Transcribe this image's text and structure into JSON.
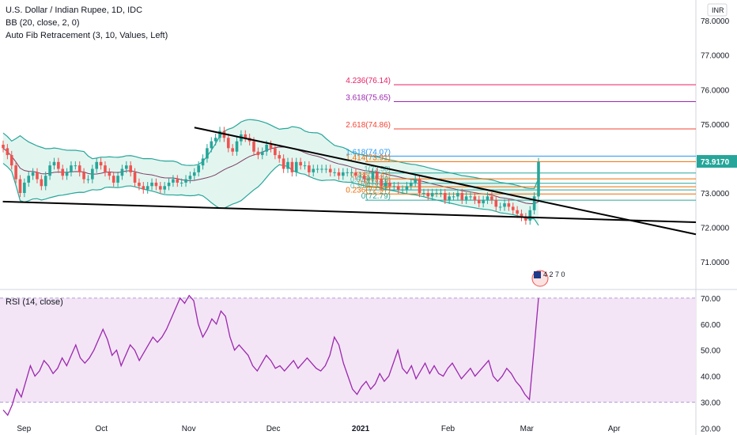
{
  "legend": {
    "symbol": "U.S. Dollar / Indian Rupee, 1D, IDC",
    "bb": "BB (20, close, 2, 0)",
    "fib": "Auto Fib Retracement (3, 10, Values, Left)",
    "rsi": "RSI (14, close)"
  },
  "currency": "INR",
  "last_price": "73.9170",
  "colors": {
    "up": "#26a69a",
    "down": "#ef5350",
    "bb_band": "#26a69a",
    "bb_fill": "#e3f5ef",
    "bb_basis": "#7b3f66",
    "rsi_line": "#9c27b0",
    "rsi_fill": "#f3e5f5",
    "trendline": "#000000",
    "fib_4236": "#e91e63",
    "fib_3618": "#9c27b0",
    "fib_2618": "#f44336",
    "fib_1618": "#2196f3",
    "price_label": "#26a69a"
  },
  "chart_data": [
    {
      "type": "candlestick",
      "title": "U.S. Dollar / Indian Rupee, 1D, IDC",
      "y_axis": {
        "ticks": [
          "78.0000",
          "77.0000",
          "76.0000",
          "75.0000",
          "73.0000",
          "72.0000",
          "71.0000"
        ],
        "range": [
          70.2,
          78.6
        ],
        "side": "right"
      },
      "x_axis": {
        "ticks": [
          "Sep",
          "Oct",
          "Nov",
          "Dec",
          "2021",
          "Feb",
          "Mar",
          "Apr"
        ],
        "range": [
          "2020-08-26",
          "2021-04-30"
        ]
      },
      "series": [
        {
          "name": "USDINR",
          "close": [
            74.3,
            74.1,
            73.8,
            73.4,
            73.0,
            73.3,
            73.5,
            73.6,
            73.4,
            73.2,
            73.5,
            73.8,
            73.9,
            73.7,
            73.5,
            73.6,
            73.8,
            73.8,
            73.6,
            73.4,
            73.4,
            73.7,
            73.9,
            73.8,
            73.6,
            73.5,
            73.3,
            73.5,
            73.7,
            73.8,
            73.6,
            73.3,
            73.2,
            73.1,
            73.2,
            73.3,
            73.2,
            73.1,
            73.2,
            73.3,
            73.4,
            73.3,
            73.3,
            73.4,
            73.5,
            73.6,
            73.8,
            74.0,
            74.3,
            74.5,
            74.6,
            74.8,
            74.6,
            74.3,
            74.2,
            74.5,
            74.7,
            74.6,
            74.5,
            74.2,
            74.1,
            74.2,
            74.4,
            74.3,
            74.1,
            74.0,
            73.7,
            73.9,
            73.6,
            73.9,
            73.8,
            73.8,
            73.6,
            73.7,
            73.7,
            73.7,
            73.7,
            73.6,
            73.6,
            73.5,
            73.6,
            73.6,
            73.6,
            73.5,
            73.5,
            73.4,
            73.4,
            73.6,
            73.4,
            73.2,
            73.3,
            73.2,
            73.2,
            73.1,
            73.1,
            73.2,
            73.3,
            73.4,
            73.0,
            73.0,
            72.9,
            73.0,
            73.0,
            73.0,
            72.8,
            72.9,
            72.9,
            73.0,
            72.8,
            72.9,
            72.9,
            72.8,
            72.7,
            72.8,
            72.9,
            72.8,
            72.6,
            72.6,
            72.7,
            72.6,
            72.5,
            72.4,
            72.3,
            72.2,
            72.5,
            72.9,
            73.9
          ],
          "lower_bollinger_band": "shaded band 20-day",
          "upper_bollinger_band": "shaded band 20-day"
        }
      ],
      "fib_levels": [
        {
          "label": "4.236(76.14)",
          "value": 76.14
        },
        {
          "label": "3.618(75.65)",
          "value": 75.65
        },
        {
          "label": "2.618(74.86)",
          "value": 74.86
        },
        {
          "label": "1.618(74.07)",
          "value": 74.07
        },
        {
          "label": "1.414(73.91)",
          "value": 73.91
        },
        {
          "label": "1(73.58)",
          "value": 73.58
        },
        {
          "label": "0.786(73.41)",
          "value": 73.41
        },
        {
          "label": "0.618(73.28)",
          "value": 73.28
        },
        {
          "label": "0.5(73.18)",
          "value": 73.18
        },
        {
          "label": "0.382(73.09)",
          "value": 73.09
        },
        {
          "label": "0.236(72.97)",
          "value": 72.97
        },
        {
          "label": "0(72.79)",
          "value": 72.79
        }
      ],
      "trendlines": [
        {
          "name": "upper",
          "from": [
            "2020-11-03",
            74.9
          ],
          "to": [
            "2021-04-30",
            71.8
          ]
        },
        {
          "name": "lower",
          "from": [
            "2020-08-27",
            72.75
          ],
          "to": [
            "2021-04-30",
            72.15
          ]
        }
      ],
      "events_label": "4 2 7 0"
    },
    {
      "type": "line",
      "title": "RSI (14, close)",
      "y_axis": {
        "ticks": [
          "70.00",
          "60.00",
          "50.00",
          "40.00",
          "30.00",
          "20.00"
        ],
        "range": [
          18,
          73
        ],
        "band": [
          30,
          70
        ]
      },
      "series": [
        {
          "name": "RSI",
          "values": [
            27,
            25,
            29,
            35,
            32,
            38,
            44,
            40,
            42,
            46,
            44,
            41,
            43,
            47,
            44,
            48,
            52,
            47,
            45,
            47,
            50,
            54,
            58,
            54,
            48,
            50,
            44,
            48,
            52,
            50,
            46,
            49,
            52,
            55,
            53,
            55,
            58,
            62,
            66,
            70,
            68,
            71,
            69,
            60,
            55,
            58,
            62,
            60,
            65,
            63,
            55,
            50,
            52,
            50,
            48,
            44,
            42,
            45,
            48,
            46,
            43,
            44,
            42,
            44,
            46,
            43,
            45,
            47,
            45,
            43,
            42,
            44,
            48,
            55,
            52,
            45,
            40,
            35,
            33,
            36,
            38,
            35,
            37,
            41,
            38,
            40,
            45,
            50,
            43,
            41,
            44,
            39,
            42,
            45,
            41,
            44,
            41,
            40,
            43,
            45,
            42,
            39,
            41,
            43,
            40,
            42,
            44,
            46,
            40,
            38,
            40,
            43,
            41,
            38,
            36,
            33,
            31,
            50,
            70
          ]
        }
      ]
    }
  ]
}
